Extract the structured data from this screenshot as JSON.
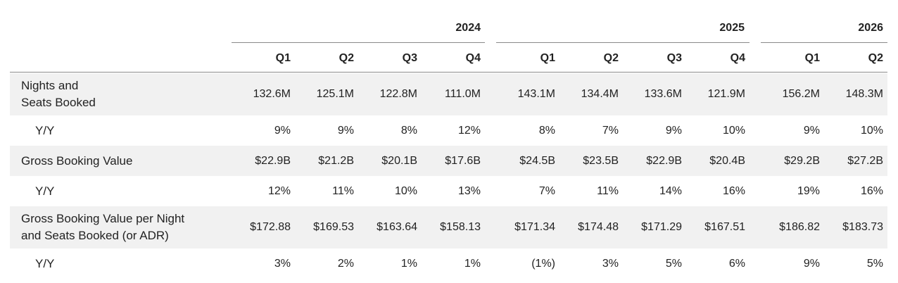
{
  "years": [
    {
      "label": "2024"
    },
    {
      "label": "2025"
    },
    {
      "label": "2026"
    }
  ],
  "quarters": [
    "Q1",
    "Q2",
    "Q3",
    "Q4",
    "Q1",
    "Q2",
    "Q3",
    "Q4",
    "Q1",
    "Q2"
  ],
  "rows": [
    {
      "label": "Nights and\nSeats Booked",
      "values": [
        "132.6M",
        "125.1M",
        "122.8M",
        "111.0M",
        "143.1M",
        "134.4M",
        "133.6M",
        "121.9M",
        "156.2M",
        "148.3M"
      ]
    },
    {
      "label": "Y/Y",
      "values": [
        "9%",
        "9%",
        "8%",
        "12%",
        "8%",
        "7%",
        "9%",
        "10%",
        "9%",
        "10%"
      ]
    },
    {
      "label": "Gross Booking Value",
      "values": [
        "$22.9B",
        "$21.2B",
        "$20.1B",
        "$17.6B",
        "$24.5B",
        "$23.5B",
        "$22.9B",
        "$20.4B",
        "$29.2B",
        "$27.2B"
      ]
    },
    {
      "label": "Y/Y",
      "values": [
        "12%",
        "11%",
        "10%",
        "13%",
        "7%",
        "11%",
        "14%",
        "16%",
        "19%",
        "16%"
      ]
    },
    {
      "label": "Gross Booking Value per Night\nand Seats Booked (or ADR)",
      "values": [
        "$172.88",
        "$169.53",
        "$163.64",
        "$158.13",
        "$171.34",
        "$174.48",
        "$171.29",
        "$167.51",
        "$186.82",
        "$183.73"
      ]
    },
    {
      "label": "Y/Y",
      "values": [
        "3%",
        "2%",
        "1%",
        "1%",
        "(1%)",
        "3%",
        "5%",
        "6%",
        "9%",
        "5%"
      ]
    }
  ]
}
